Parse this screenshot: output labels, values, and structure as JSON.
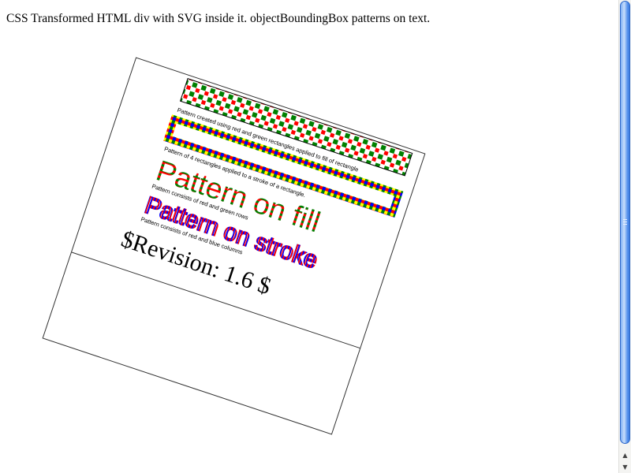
{
  "page": {
    "heading": "CSS Transformed HTML div with SVG inside it. objectBoundingBox patterns on text."
  },
  "svg": {
    "caption_fill_rect": "Pattern created using red and green rectangles applied to fill of rectangle",
    "caption_stroke_rect": "Pattern of 4 rectangles applied to a stroke of a rectangle.",
    "big_fill_text": "Pattern on fill",
    "caption_fill_text": "Pattern consists of red and green rows",
    "big_stroke_text": "Pattern on stroke",
    "caption_stroke_text": "Pattern consists of red and blue columns",
    "revision": "$Revision: 1.6 $"
  },
  "colors": {
    "pattern_red": "#ff0000",
    "pattern_green": "#008000",
    "pattern_blue": "#0000ff",
    "pattern_yellow": "#ffff00",
    "scroll_thumb": "#5a95ee"
  },
  "scrollbar": {
    "up_icon": "scroll-up-arrow-icon",
    "down_icon": "scroll-down-arrow-icon"
  }
}
